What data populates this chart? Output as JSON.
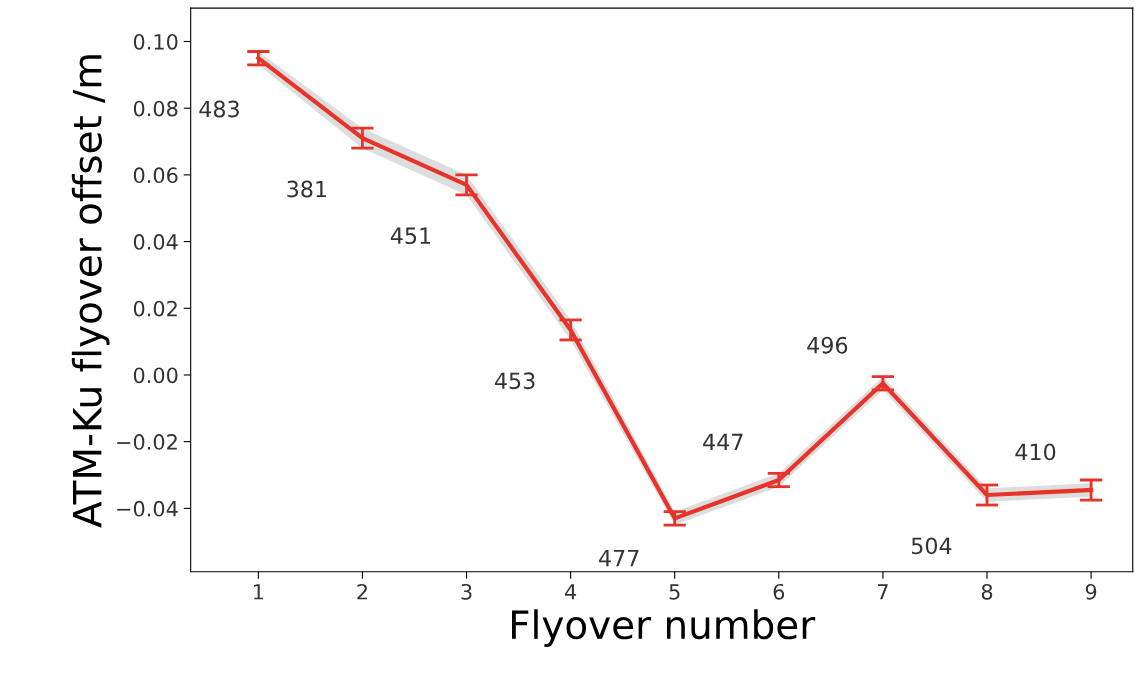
{
  "chart_data": {
    "type": "line",
    "xlabel": "Flyover number",
    "ylabel": "ATM-Ku flyover offset /m",
    "x": [
      1,
      2,
      3,
      4,
      5,
      6,
      7,
      8,
      9
    ],
    "series": [
      {
        "color": "#e8332a",
        "values": [
          0.095,
          0.071,
          0.057,
          0.0135,
          -0.043,
          -0.0315,
          -0.0025,
          -0.036,
          -0.0345
        ],
        "errors": [
          0.002,
          0.003,
          0.003,
          0.003,
          0.002,
          0.002,
          0.002,
          0.003,
          0.003
        ],
        "lower": [
          0.093,
          0.068,
          0.054,
          0.0105,
          -0.045,
          -0.0335,
          -0.0045,
          -0.038,
          -0.0365
        ],
        "upper": [
          0.097,
          0.074,
          0.06,
          0.0165,
          -0.041,
          -0.0295,
          -0.0005,
          -0.034,
          -0.0325
        ]
      }
    ],
    "annotations": [
      "483",
      "381",
      "451",
      "453",
      "477",
      "447",
      "496",
      "504",
      "410"
    ],
    "xlim": [
      0.35,
      9.4
    ],
    "xticks": [
      1,
      2,
      3,
      4,
      5,
      6,
      7,
      8,
      9
    ],
    "ylim": [
      -0.059,
      0.11
    ],
    "yticks": [
      {
        "value": -0.04,
        "label": "−0.04"
      },
      {
        "value": -0.02,
        "label": "−0.02"
      },
      {
        "value": 0,
        "label": "0.00"
      },
      {
        "value": 0.02,
        "label": "0.02"
      },
      {
        "value": 0.04,
        "label": "0.04"
      },
      {
        "value": 0.06,
        "label": "0.06"
      },
      {
        "value": 0.08,
        "label": "0.08"
      },
      {
        "value": 0.1,
        "label": "0.10"
      }
    ],
    "grid": false,
    "marker": "none",
    "line_style": "solid"
  }
}
